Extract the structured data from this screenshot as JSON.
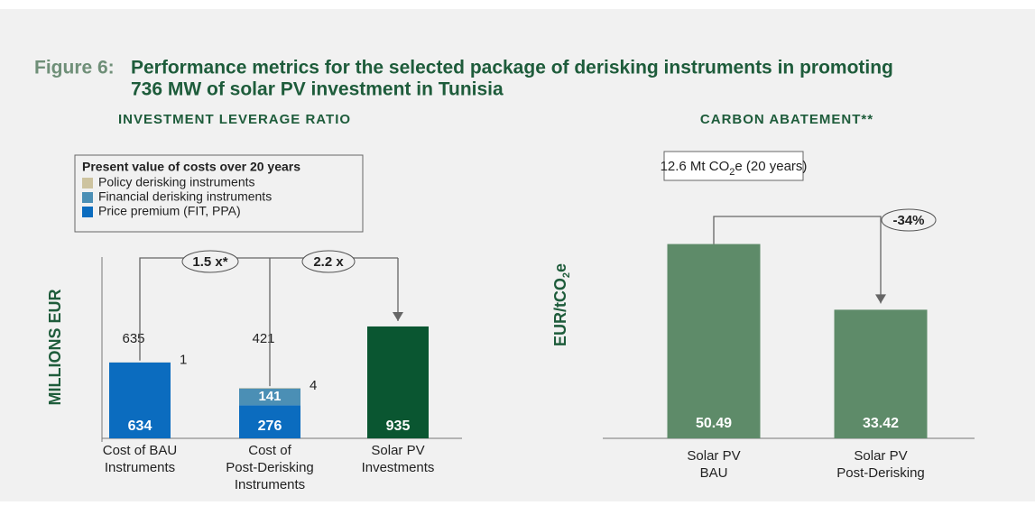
{
  "figure_label": "Figure 6:",
  "title": [
    "Performance metrics for the selected package of derisking instruments in promoting",
    "736 MW of solar PV investment in Tunisia"
  ],
  "chart_data": [
    {
      "type": "stacked_bar",
      "title": "INVESTMENT LEVERAGE RATIO",
      "y_label": "MILLIONS EUR",
      "legend_title": "Present value of costs over 20 years",
      "categories": [
        [
          "Cost of BAU",
          "Instruments"
        ],
        [
          "Cost of",
          "Post-Derisking",
          "Instruments"
        ],
        [
          "Solar PV",
          "Investments"
        ]
      ],
      "series": [
        {
          "name": "Price premium (FIT, PPA)",
          "color": "#0b6cbf",
          "values": [
            634,
            276,
            null
          ]
        },
        {
          "name": "Financial derisking instruments",
          "color": "#4b8fb5",
          "values": [
            null,
            141,
            null
          ]
        },
        {
          "name": "Policy derisking instruments",
          "color": "#cdc39f",
          "values": [
            1,
            4,
            null
          ]
        },
        {
          "color": "#0a5631",
          "values": [
            null,
            null,
            935
          ]
        }
      ],
      "totals": [
        635,
        421
      ],
      "annotations": [
        "1.5 x*",
        "2.2 x"
      ],
      "ylim": [
        0,
        1500
      ]
    },
    {
      "type": "bar",
      "title": "CARBON ABATEMENT**",
      "y_label": [
        "EUR/tCO",
        "2",
        "e"
      ],
      "note": [
        "12.6 Mt CO",
        "2",
        "e (20 years)"
      ],
      "categories": [
        [
          "Solar PV",
          "BAU"
        ],
        [
          "Solar PV",
          "Post-Derisking"
        ]
      ],
      "values": [
        50.49,
        33.42
      ],
      "color": "#5e8b69",
      "annotation": "-34%",
      "ylim": [
        0,
        60
      ]
    }
  ]
}
